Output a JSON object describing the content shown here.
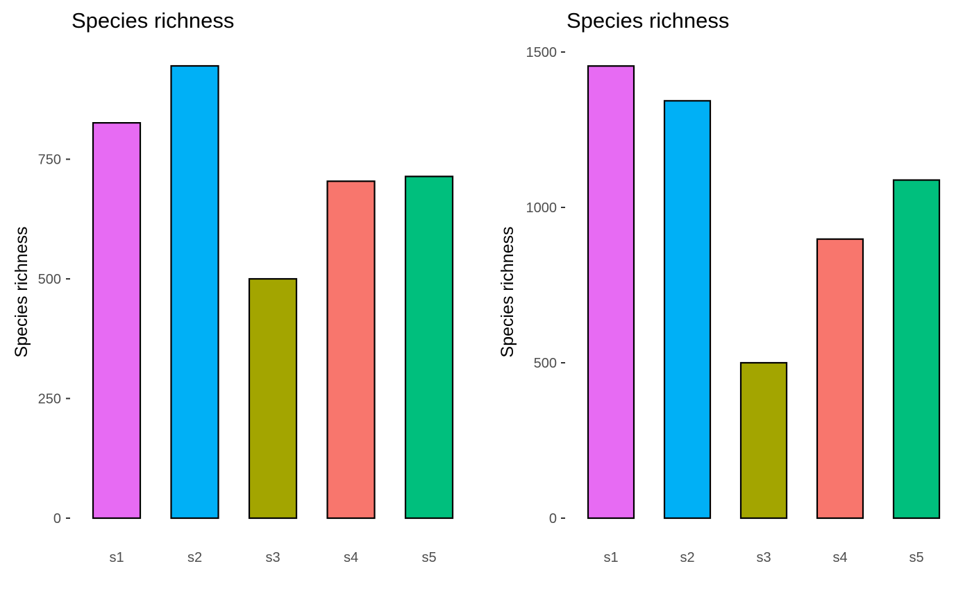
{
  "chart_data": [
    {
      "type": "bar",
      "title": "Species richness",
      "xlabel": "",
      "ylabel": "Species richness",
      "categories": [
        "s1",
        "s2",
        "s3",
        "s4",
        "s5"
      ],
      "values": [
        826,
        945,
        500,
        704,
        714
      ],
      "colors": [
        "#E76BF3",
        "#00B0F6",
        "#A3A500",
        "#F8766D",
        "#00BF7D"
      ],
      "ylim": [
        0,
        945
      ],
      "yticks": [
        0,
        250,
        500,
        750
      ],
      "grid": false,
      "legend": "none"
    },
    {
      "type": "bar",
      "title": "Species richness",
      "xlabel": "",
      "ylabel": "Species richness",
      "categories": [
        "s1",
        "s2",
        "s3",
        "s4",
        "s5"
      ],
      "values": [
        1455,
        1343,
        500,
        898,
        1088
      ],
      "colors": [
        "#E76BF3",
        "#00B0F6",
        "#A3A500",
        "#F8766D",
        "#00BF7D"
      ],
      "ylim": [
        0,
        1500
      ],
      "yticks": [
        0,
        500,
        1000,
        1500
      ],
      "grid": false,
      "legend": "none"
    }
  ]
}
